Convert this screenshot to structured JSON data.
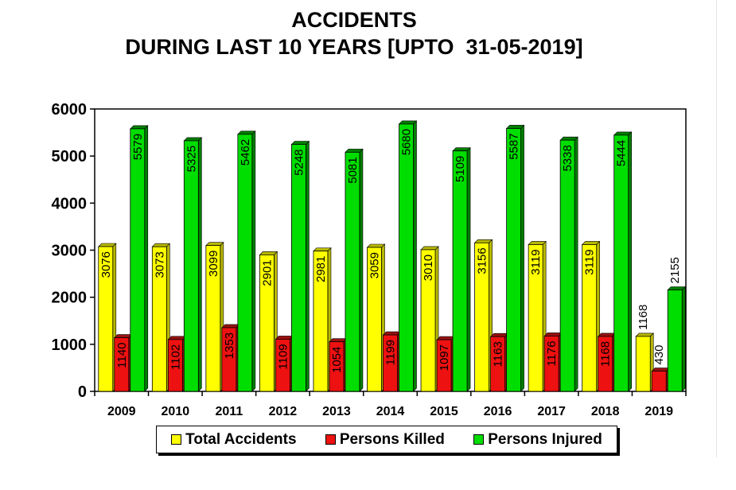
{
  "chart_data": {
    "type": "bar",
    "title": [
      "ACCIDENTS",
      "DURING LAST 10 YEARS [UPTO  31-05-2019]"
    ],
    "categories": [
      "2009",
      "2010",
      "2011",
      "2012",
      "2013",
      "2014",
      "2015",
      "2016",
      "2017",
      "2018",
      "2019"
    ],
    "series": [
      {
        "name": "Total Accidents",
        "color": "#ffff00",
        "values": [
          3076,
          3073,
          3099,
          2901,
          2981,
          3059,
          3010,
          3156,
          3119,
          3119,
          1168
        ]
      },
      {
        "name": "Persons Killed",
        "color": "#ee1111",
        "values": [
          1140,
          1102,
          1353,
          1109,
          1054,
          1199,
          1097,
          1163,
          1176,
          1168,
          430
        ]
      },
      {
        "name": "Persons Injured",
        "color": "#00dd00",
        "values": [
          5579,
          5325,
          5462,
          5248,
          5081,
          5680,
          5109,
          5587,
          5338,
          5444,
          2155
        ]
      }
    ],
    "ylim": [
      0,
      6000
    ],
    "yticks": [
      "0",
      "1000",
      "2000",
      "3000",
      "4000",
      "5000",
      "6000"
    ],
    "xlabel": "",
    "ylabel": "",
    "grid": false,
    "legend_position": "bottom"
  }
}
